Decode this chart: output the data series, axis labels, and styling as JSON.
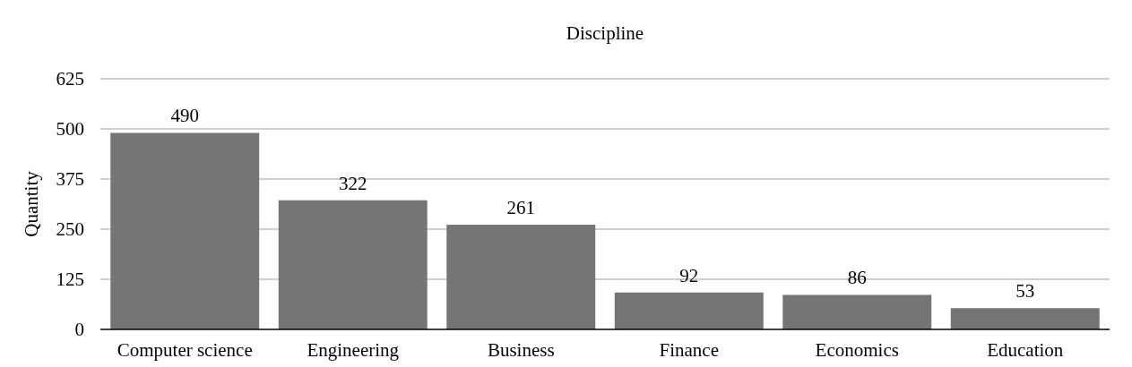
{
  "chart_data": {
    "type": "bar",
    "title": "Discipline",
    "ylabel": "Quantity",
    "categories": [
      "Computer science",
      "Engineering",
      "Business",
      "Finance",
      "Economics",
      "Education"
    ],
    "values": [
      490,
      322,
      261,
      92,
      86,
      53
    ],
    "color": "#757575",
    "ylim": [
      0,
      625
    ],
    "yticks": [
      0,
      125,
      250,
      375,
      500,
      625
    ],
    "grid": "y",
    "data_labels": true
  }
}
